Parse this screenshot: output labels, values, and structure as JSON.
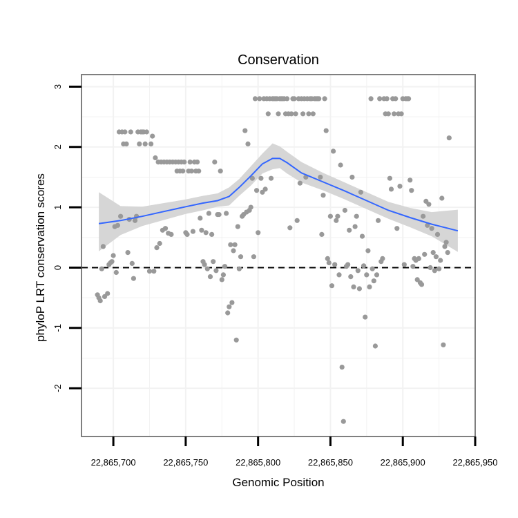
{
  "chart_data": {
    "type": "scatter",
    "title": "Conservation",
    "xlabel": "Genomic Position",
    "ylabel": "phyloP LRT conservation scores",
    "xlim": [
      22865678,
      22865950
    ],
    "ylim": [
      -2.8,
      3.2
    ],
    "x_ticks": [
      22865700,
      22865750,
      22865800,
      22865850,
      22865900,
      22865950
    ],
    "x_tick_labels": [
      "22,865,700",
      "22,865,750",
      "22,865,800",
      "22,865,850",
      "22,865,900",
      "22,865,950"
    ],
    "y_ticks": [
      -2,
      -1,
      0,
      1,
      2,
      3
    ],
    "y_tick_labels": [
      "-2",
      "-1",
      "0",
      "1",
      "2",
      "3"
    ],
    "reference_line": {
      "y": 0,
      "style": "dashed"
    },
    "grid": true,
    "colors": {
      "points": "#999999",
      "smooth": "#3366ff",
      "band": "#d6d6d6",
      "panel_border": "#7f7f7f",
      "grid": "#f2f2f2"
    },
    "smooth": {
      "x": [
        22865690,
        22865705,
        22865720,
        22865735,
        22865750,
        22865762,
        22865772,
        22865780,
        22865787,
        22865795,
        22865803,
        22865810,
        22865815,
        22865820,
        22865830,
        22865845,
        22865860,
        22865875,
        22865890,
        22865905,
        22865920,
        22865938
      ],
      "y": [
        0.73,
        0.78,
        0.85,
        0.93,
        1.01,
        1.07,
        1.11,
        1.18,
        1.33,
        1.52,
        1.72,
        1.81,
        1.81,
        1.74,
        1.57,
        1.42,
        1.27,
        1.11,
        0.95,
        0.83,
        0.72,
        0.61
      ],
      "lower": [
        0.27,
        0.54,
        0.69,
        0.79,
        0.89,
        0.95,
        1.01,
        1.03,
        1.19,
        1.36,
        1.56,
        1.63,
        1.65,
        1.56,
        1.41,
        1.28,
        1.13,
        0.97,
        0.81,
        0.67,
        0.52,
        0.26
      ],
      "upper": [
        1.25,
        1.02,
        1.01,
        1.07,
        1.13,
        1.19,
        1.23,
        1.33,
        1.47,
        1.68,
        1.89,
        2.06,
        2.01,
        1.92,
        1.75,
        1.57,
        1.41,
        1.25,
        1.09,
        0.99,
        0.92,
        0.96
      ]
    },
    "points": [
      [
        22865689,
        -0.45
      ],
      [
        22865690,
        -0.5
      ],
      [
        22865691,
        -0.55
      ],
      [
        22865692,
        -0.02
      ],
      [
        22865693,
        0.35
      ],
      [
        22865694,
        -0.48
      ],
      [
        22865696,
        -0.43
      ],
      [
        22865697,
        0.05
      ],
      [
        22865698,
        0.08
      ],
      [
        22865699,
        0.1
      ],
      [
        22865700,
        0.2
      ],
      [
        22865701,
        0.68
      ],
      [
        22865702,
        -0.08
      ],
      [
        22865703,
        0.7
      ],
      [
        22865704,
        2.25
      ],
      [
        22865705,
        0.85
      ],
      [
        22865706,
        2.25
      ],
      [
        22865707,
        2.05
      ],
      [
        22865708,
        2.25
      ],
      [
        22865709,
        2.05
      ],
      [
        22865710,
        0.25
      ],
      [
        22865711,
        0.8
      ],
      [
        22865712,
        2.25
      ],
      [
        22865713,
        0.07
      ],
      [
        22865714,
        -0.18
      ],
      [
        22865715,
        0.78
      ],
      [
        22865716,
        0.85
      ],
      [
        22865717,
        2.25
      ],
      [
        22865718,
        2.05
      ],
      [
        22865719,
        2.25
      ],
      [
        22865720,
        2.25
      ],
      [
        22865721,
        2.25
      ],
      [
        22865722,
        2.05
      ],
      [
        22865723,
        2.25
      ],
      [
        22865725,
        -0.06
      ],
      [
        22865726,
        2.05
      ],
      [
        22865727,
        2.18
      ],
      [
        22865728,
        -0.06
      ],
      [
        22865729,
        1.82
      ],
      [
        22865730,
        0.33
      ],
      [
        22865731,
        1.75
      ],
      [
        22865732,
        0.4
      ],
      [
        22865733,
        1.75
      ],
      [
        22865734,
        0.62
      ],
      [
        22865735,
        1.75
      ],
      [
        22865736,
        0.65
      ],
      [
        22865737,
        1.75
      ],
      [
        22865738,
        0.57
      ],
      [
        22865739,
        1.75
      ],
      [
        22865740,
        0.55
      ],
      [
        22865741,
        1.75
      ],
      [
        22865743,
        1.75
      ],
      [
        22865744,
        1.6
      ],
      [
        22865745,
        1.75
      ],
      [
        22865746,
        1.6
      ],
      [
        22865747,
        1.75
      ],
      [
        22865748,
        1.6
      ],
      [
        22865749,
        1.75
      ],
      [
        22865750,
        0.58
      ],
      [
        22865751,
        0.55
      ],
      [
        22865752,
        1.6
      ],
      [
        22865753,
        1.75
      ],
      [
        22865754,
        1.6
      ],
      [
        22865755,
        0.6
      ],
      [
        22865756,
        1.75
      ],
      [
        22865757,
        1.6
      ],
      [
        22865758,
        1.75
      ],
      [
        22865759,
        1.6
      ],
      [
        22865760,
        0.82
      ],
      [
        22865761,
        0.62
      ],
      [
        22865762,
        0.1
      ],
      [
        22865763,
        0.05
      ],
      [
        22865764,
        0.58
      ],
      [
        22865765,
        -0.02
      ],
      [
        22865766,
        0.9
      ],
      [
        22865767,
        -0.15
      ],
      [
        22865768,
        0.55
      ],
      [
        22865769,
        0.1
      ],
      [
        22865770,
        1.75
      ],
      [
        22865771,
        -0.05
      ],
      [
        22865772,
        0.88
      ],
      [
        22865773,
        0.88
      ],
      [
        22865774,
        1.6
      ],
      [
        22865775,
        -0.2
      ],
      [
        22865776,
        -0.12
      ],
      [
        22865777,
        0.02
      ],
      [
        22865778,
        0.9
      ],
      [
        22865779,
        -0.75
      ],
      [
        22865780,
        -0.65
      ],
      [
        22865781,
        0.38
      ],
      [
        22865782,
        -0.58
      ],
      [
        22865783,
        0.28
      ],
      [
        22865784,
        0.38
      ],
      [
        22865785,
        -1.2
      ],
      [
        22865786,
        0.68
      ],
      [
        22865787,
        -0.02
      ],
      [
        22865788,
        0.18
      ],
      [
        22865789,
        0.85
      ],
      [
        22865790,
        0.88
      ],
      [
        22865791,
        2.27
      ],
      [
        22865792,
        0.92
      ],
      [
        22865793,
        2.05
      ],
      [
        22865794,
        0.95
      ],
      [
        22865795,
        1.0
      ],
      [
        22865796,
        1.48
      ],
      [
        22865797,
        0.18
      ],
      [
        22865798,
        2.8
      ],
      [
        22865799,
        1.28
      ],
      [
        22865800,
        0.58
      ],
      [
        22865801,
        2.8
      ],
      [
        22865802,
        1.48
      ],
      [
        22865803,
        1.25
      ],
      [
        22865804,
        2.8
      ],
      [
        22865805,
        1.3
      ],
      [
        22865806,
        2.8
      ],
      [
        22865807,
        2.55
      ],
      [
        22865808,
        2.8
      ],
      [
        22865809,
        1.48
      ],
      [
        22865810,
        2.8
      ],
      [
        22865811,
        2.8
      ],
      [
        22865812,
        2.8
      ],
      [
        22865813,
        2.8
      ],
      [
        22865814,
        2.55
      ],
      [
        22865815,
        2.8
      ],
      [
        22865816,
        2.8
      ],
      [
        22865817,
        2.8
      ],
      [
        22865818,
        2.8
      ],
      [
        22865819,
        2.55
      ],
      [
        22865820,
        2.8
      ],
      [
        22865821,
        2.55
      ],
      [
        22865822,
        0.66
      ],
      [
        22865823,
        2.55
      ],
      [
        22865824,
        2.8
      ],
      [
        22865825,
        2.8
      ],
      [
        22865826,
        2.55
      ],
      [
        22865827,
        0.78
      ],
      [
        22865828,
        2.8
      ],
      [
        22865829,
        1.4
      ],
      [
        22865830,
        2.8
      ],
      [
        22865831,
        2.55
      ],
      [
        22865832,
        2.8
      ],
      [
        22865833,
        1.5
      ],
      [
        22865834,
        2.8
      ],
      [
        22865835,
        2.55
      ],
      [
        22865836,
        2.8
      ],
      [
        22865837,
        2.8
      ],
      [
        22865838,
        2.55
      ],
      [
        22865839,
        2.8
      ],
      [
        22865840,
        2.8
      ],
      [
        22865841,
        2.8
      ],
      [
        22865842,
        2.8
      ],
      [
        22865843,
        1.5
      ],
      [
        22865844,
        0.55
      ],
      [
        22865845,
        1.2
      ],
      [
        22865846,
        2.8
      ],
      [
        22865847,
        2.27
      ],
      [
        22865848,
        0.15
      ],
      [
        22865849,
        0.08
      ],
      [
        22865850,
        0.85
      ],
      [
        22865851,
        -0.3
      ],
      [
        22865852,
        1.93
      ],
      [
        22865853,
        0.05
      ],
      [
        22865854,
        0.78
      ],
      [
        22865855,
        0.85
      ],
      [
        22865856,
        -0.12
      ],
      [
        22865857,
        1.7
      ],
      [
        22865858,
        -1.65
      ],
      [
        22865859,
        -2.55
      ],
      [
        22865860,
        0.95
      ],
      [
        22865861,
        0.02
      ],
      [
        22865862,
        0.05
      ],
      [
        22865863,
        0.62
      ],
      [
        22865864,
        -0.15
      ],
      [
        22865865,
        1.5
      ],
      [
        22865866,
        -0.32
      ],
      [
        22865867,
        0.68
      ],
      [
        22865868,
        0.85
      ],
      [
        22865869,
        -0.05
      ],
      [
        22865870,
        -0.35
      ],
      [
        22865871,
        1.25
      ],
      [
        22865872,
        0.52
      ],
      [
        22865873,
        0.03
      ],
      [
        22865874,
        -0.82
      ],
      [
        22865875,
        -0.12
      ],
      [
        22865876,
        0.28
      ],
      [
        22865877,
        -0.32
      ],
      [
        22865878,
        2.8
      ],
      [
        22865879,
        -0.02
      ],
      [
        22865880,
        -0.22
      ],
      [
        22865881,
        -1.3
      ],
      [
        22865882,
        -0.12
      ],
      [
        22865883,
        0.78
      ],
      [
        22865884,
        2.8
      ],
      [
        22865885,
        0.1
      ],
      [
        22865886,
        0.15
      ],
      [
        22865887,
        2.8
      ],
      [
        22865888,
        2.55
      ],
      [
        22865889,
        2.8
      ],
      [
        22865890,
        2.55
      ],
      [
        22865891,
        1.48
      ],
      [
        22865892,
        1.3
      ],
      [
        22865893,
        2.8
      ],
      [
        22865894,
        2.55
      ],
      [
        22865895,
        2.8
      ],
      [
        22865896,
        0.65
      ],
      [
        22865897,
        2.55
      ],
      [
        22865898,
        1.35
      ],
      [
        22865899,
        2.55
      ],
      [
        22865900,
        2.8
      ],
      [
        22865901,
        0.05
      ],
      [
        22865902,
        2.8
      ],
      [
        22865903,
        2.8
      ],
      [
        22865904,
        2.8
      ],
      [
        22865905,
        1.45
      ],
      [
        22865906,
        1.28
      ],
      [
        22865907,
        0.02
      ],
      [
        22865908,
        0.15
      ],
      [
        22865909,
        0.12
      ],
      [
        22865910,
        -0.2
      ],
      [
        22865911,
        0.15
      ],
      [
        22865912,
        -0.25
      ],
      [
        22865913,
        -0.28
      ],
      [
        22865914,
        0.85
      ],
      [
        22865915,
        0.22
      ],
      [
        22865916,
        1.1
      ],
      [
        22865917,
        0.7
      ],
      [
        22865918,
        1.05
      ],
      [
        22865919,
        0.0
      ],
      [
        22865920,
        0.65
      ],
      [
        22865921,
        0.25
      ],
      [
        22865922,
        -0.05
      ],
      [
        22865923,
        0.18
      ],
      [
        22865924,
        0.55
      ],
      [
        22865925,
        -0.02
      ],
      [
        22865926,
        0.12
      ],
      [
        22865927,
        1.15
      ],
      [
        22865928,
        -1.28
      ],
      [
        22865929,
        0.35
      ],
      [
        22865930,
        0.42
      ],
      [
        22865931,
        0.25
      ],
      [
        22865932,
        2.15
      ]
    ]
  }
}
